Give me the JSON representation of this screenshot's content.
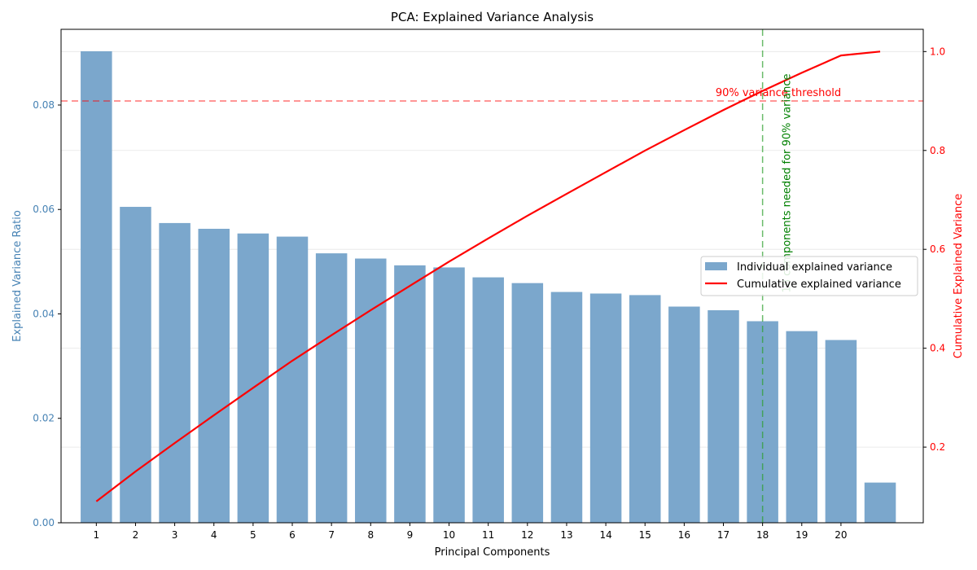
{
  "chart_data": {
    "type": "bar",
    "title": "PCA: Explained Variance Analysis",
    "xlabel": "Principal Components",
    "ylabel_left": "Explained Variance Ratio",
    "ylabel_right": "Cumulative Explained Variance",
    "x_tick_labels": [
      "1",
      "2",
      "3",
      "4",
      "5",
      "6",
      "7",
      "8",
      "9",
      "10",
      "11",
      "12",
      "13",
      "14",
      "15",
      "16",
      "17",
      "18",
      "19",
      "20"
    ],
    "y_left_ticks": [
      "0.00",
      "0.02",
      "0.04",
      "0.06",
      "0.08"
    ],
    "y_left_tick_values": [
      0,
      0.02,
      0.04,
      0.06,
      0.08
    ],
    "y_right_ticks": [
      "0.2",
      "0.4",
      "0.6",
      "0.8",
      "1.0"
    ],
    "y_right_tick_values": [
      0.2,
      0.4,
      0.6,
      0.8,
      1.0
    ],
    "ylim_left": [
      0,
      0.0945
    ],
    "ylim_right": [
      0.047,
      1.045
    ],
    "components": [
      1,
      2,
      3,
      4,
      5,
      6,
      7,
      8,
      9,
      10,
      11,
      12,
      13,
      14,
      15,
      16,
      17,
      18,
      19,
      20,
      21
    ],
    "individual": [
      0.0903,
      0.0605,
      0.0574,
      0.0563,
      0.0554,
      0.0548,
      0.0516,
      0.0506,
      0.0493,
      0.0489,
      0.047,
      0.0459,
      0.0442,
      0.0439,
      0.0436,
      0.0414,
      0.0407,
      0.0386,
      0.0367,
      0.035,
      0.0077
    ],
    "cumulative": [
      0.0903,
      0.1508,
      0.2082,
      0.2645,
      0.3199,
      0.3747,
      0.4263,
      0.4769,
      0.5262,
      0.5751,
      0.6221,
      0.668,
      0.7122,
      0.7561,
      0.7997,
      0.8411,
      0.8818,
      0.9204,
      0.9571,
      0.9921,
      1.0
    ],
    "threshold": 0.9,
    "threshold_label": "90% variance threshold",
    "components_needed": 18,
    "components_needed_label": "18 components needed for 90% variance",
    "series": [
      {
        "name": "Individual explained variance",
        "color": "#4682b4"
      },
      {
        "name": "Cumulative explained variance",
        "color": "#ff0000"
      }
    ],
    "legend_position": "center-right",
    "grid": true,
    "colors": {
      "bar": "#7ba7cc",
      "left_axis": "#4682b4",
      "right_axis": "#ff0000",
      "threshold": "#ff0000",
      "needed_line": "#2ca02c",
      "needed_text": "#008000"
    }
  }
}
